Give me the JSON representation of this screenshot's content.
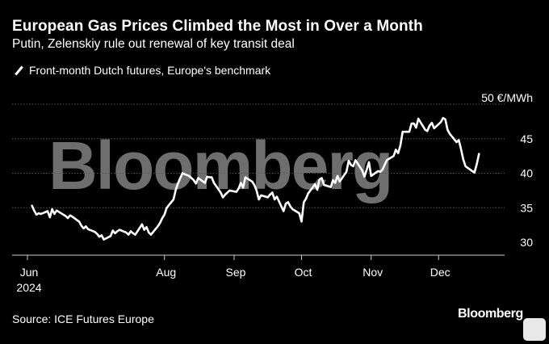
{
  "header": {
    "title": "European Gas Prices Climbed the Most in Over a Month",
    "subtitle": "Putin, Zelenskiy rule out renewal of key transit deal"
  },
  "footer": {
    "source": "Source: ICE Futures Europe",
    "brand": "Bloomberg"
  },
  "watermark": "Bloomberg",
  "colors": {
    "background": "#000000",
    "line": "#ffffff",
    "grid": "#555555",
    "watermark": "#6e6e6e"
  },
  "chart_data": {
    "type": "line",
    "legend": {
      "placement": "top-left",
      "label": "Front-month Dutch futures, Europe's benchmark"
    },
    "yunit_label": "50 €/MWh",
    "y_ticks": [
      30,
      35,
      40,
      45,
      50
    ],
    "y_tick_labels": [
      "30",
      "35",
      "40",
      "45",
      ""
    ],
    "ylim": [
      29,
      52
    ],
    "grid": true,
    "x_ticks": [
      {
        "date": "2024-06-01",
        "label": "Jun",
        "year": "2024"
      },
      {
        "date": "2024-08-01",
        "label": "Aug"
      },
      {
        "date": "2024-09-01",
        "label": "Sep"
      },
      {
        "date": "2024-10-01",
        "label": "Oct"
      },
      {
        "date": "2024-11-01",
        "label": "Nov"
      },
      {
        "date": "2024-12-01",
        "label": "Dec"
      }
    ],
    "xlim": [
      "2024-06-01",
      "2024-12-25"
    ],
    "series": [
      {
        "name": "Front-month Dutch futures, Europe's benchmark",
        "points": [
          [
            "2024-06-03",
            35.3
          ],
          [
            "2024-06-04",
            34.6
          ],
          [
            "2024-06-05",
            34.0
          ],
          [
            "2024-06-06",
            34.2
          ],
          [
            "2024-06-07",
            34.1
          ],
          [
            "2024-06-10",
            34.5
          ],
          [
            "2024-06-11",
            33.6
          ],
          [
            "2024-06-12",
            34.8
          ],
          [
            "2024-06-13",
            34.1
          ],
          [
            "2024-06-14",
            34.6
          ],
          [
            "2024-06-17",
            34.0
          ],
          [
            "2024-06-18",
            33.8
          ],
          [
            "2024-06-19",
            33.5
          ],
          [
            "2024-06-20",
            33.9
          ],
          [
            "2024-06-21",
            33.7
          ],
          [
            "2024-06-24",
            33.0
          ],
          [
            "2024-06-25",
            32.4
          ],
          [
            "2024-06-26",
            32.0
          ],
          [
            "2024-06-27",
            32.3
          ],
          [
            "2024-06-28",
            31.9
          ],
          [
            "2024-07-01",
            31.5
          ],
          [
            "2024-07-02",
            31.2
          ],
          [
            "2024-07-03",
            30.8
          ],
          [
            "2024-07-04",
            31.0
          ],
          [
            "2024-07-05",
            30.4
          ],
          [
            "2024-07-08",
            30.9
          ],
          [
            "2024-07-09",
            31.7
          ],
          [
            "2024-07-10",
            31.3
          ],
          [
            "2024-07-11",
            31.6
          ],
          [
            "2024-07-12",
            31.8
          ],
          [
            "2024-07-15",
            31.4
          ],
          [
            "2024-07-16",
            31.1
          ],
          [
            "2024-07-17",
            31.6
          ],
          [
            "2024-07-18",
            31.3
          ],
          [
            "2024-07-19",
            31.1
          ],
          [
            "2024-07-22",
            32.6
          ],
          [
            "2024-07-23",
            31.8
          ],
          [
            "2024-07-24",
            32.2
          ],
          [
            "2024-07-25",
            31.4
          ],
          [
            "2024-07-26",
            31.1
          ],
          [
            "2024-07-29",
            32.3
          ],
          [
            "2024-07-30",
            32.8
          ],
          [
            "2024-07-31",
            33.5
          ],
          [
            "2024-08-01",
            34.0
          ],
          [
            "2024-08-02",
            35.0
          ],
          [
            "2024-08-05",
            36.2
          ],
          [
            "2024-08-06",
            37.6
          ],
          [
            "2024-08-07",
            38.5
          ],
          [
            "2024-08-08",
            39.3
          ],
          [
            "2024-08-09",
            40.0
          ],
          [
            "2024-08-12",
            39.6
          ],
          [
            "2024-08-13",
            39.3
          ],
          [
            "2024-08-14",
            39.0
          ],
          [
            "2024-08-15",
            38.5
          ],
          [
            "2024-08-16",
            39.3
          ],
          [
            "2024-08-19",
            38.6
          ],
          [
            "2024-08-20",
            39.5
          ],
          [
            "2024-08-21",
            39.4
          ],
          [
            "2024-08-22",
            39.4
          ],
          [
            "2024-08-23",
            38.6
          ],
          [
            "2024-08-26",
            37.2
          ],
          [
            "2024-08-27",
            36.5
          ],
          [
            "2024-08-28",
            36.9
          ],
          [
            "2024-08-29",
            37.2
          ],
          [
            "2024-08-30",
            37.5
          ],
          [
            "2024-09-02",
            37.3
          ],
          [
            "2024-09-03",
            37.8
          ],
          [
            "2024-09-04",
            38.6
          ],
          [
            "2024-09-05",
            37.9
          ],
          [
            "2024-09-06",
            39.4
          ],
          [
            "2024-09-09",
            38.8
          ],
          [
            "2024-09-10",
            38.3
          ],
          [
            "2024-09-11",
            37.5
          ],
          [
            "2024-09-12",
            36.2
          ],
          [
            "2024-09-13",
            36.8
          ],
          [
            "2024-09-16",
            36.5
          ],
          [
            "2024-09-17",
            36.9
          ],
          [
            "2024-09-18",
            37.2
          ],
          [
            "2024-09-19",
            36.2
          ],
          [
            "2024-09-20",
            36.6
          ],
          [
            "2024-09-23",
            34.5
          ],
          [
            "2024-09-24",
            35.6
          ],
          [
            "2024-09-25",
            35.8
          ],
          [
            "2024-09-26",
            35.2
          ],
          [
            "2024-09-27",
            34.8
          ],
          [
            "2024-09-30",
            34.2
          ],
          [
            "2024-10-01",
            33.0
          ],
          [
            "2024-10-02",
            35.8
          ],
          [
            "2024-10-03",
            36.3
          ],
          [
            "2024-10-04",
            37.1
          ],
          [
            "2024-10-07",
            38.4
          ],
          [
            "2024-10-08",
            37.6
          ],
          [
            "2024-10-09",
            39.1
          ],
          [
            "2024-10-10",
            39.3
          ],
          [
            "2024-10-11",
            38.3
          ],
          [
            "2024-10-14",
            38.0
          ],
          [
            "2024-10-15",
            39.0
          ],
          [
            "2024-10-16",
            38.6
          ],
          [
            "2024-10-17",
            39.6
          ],
          [
            "2024-10-18",
            38.8
          ],
          [
            "2024-10-21",
            40.2
          ],
          [
            "2024-10-22",
            41.8
          ],
          [
            "2024-10-23",
            41.2
          ],
          [
            "2024-10-24",
            41.0
          ],
          [
            "2024-10-25",
            41.9
          ],
          [
            "2024-10-28",
            40.4
          ],
          [
            "2024-10-29",
            39.5
          ],
          [
            "2024-10-30",
            40.5
          ],
          [
            "2024-10-31",
            41.6
          ],
          [
            "2024-11-01",
            39.6
          ],
          [
            "2024-11-04",
            40.3
          ],
          [
            "2024-11-05",
            40.2
          ],
          [
            "2024-11-06",
            40.5
          ],
          [
            "2024-11-07",
            41.2
          ],
          [
            "2024-11-08",
            41.9
          ],
          [
            "2024-11-11",
            42.5
          ],
          [
            "2024-11-12",
            43.4
          ],
          [
            "2024-11-13",
            42.9
          ],
          [
            "2024-11-14",
            44.0
          ],
          [
            "2024-11-15",
            46.0
          ],
          [
            "2024-11-18",
            46.0
          ],
          [
            "2024-11-19",
            47.2
          ],
          [
            "2024-11-20",
            47.2
          ],
          [
            "2024-11-21",
            46.6
          ],
          [
            "2024-11-22",
            47.9
          ],
          [
            "2024-11-25",
            46.3
          ],
          [
            "2024-11-26",
            46.1
          ],
          [
            "2024-11-27",
            46.9
          ],
          [
            "2024-11-28",
            47.3
          ],
          [
            "2024-11-29",
            46.5
          ],
          [
            "2024-12-02",
            47.4
          ],
          [
            "2024-12-03",
            48.0
          ],
          [
            "2024-12-04",
            47.8
          ],
          [
            "2024-12-05",
            46.3
          ],
          [
            "2024-12-06",
            45.7
          ],
          [
            "2024-12-09",
            44.5
          ],
          [
            "2024-12-10",
            44.8
          ],
          [
            "2024-12-11",
            43.5
          ],
          [
            "2024-12-12",
            42.0
          ],
          [
            "2024-12-13",
            41.0
          ],
          [
            "2024-12-16",
            40.3
          ],
          [
            "2024-12-17",
            40.1
          ],
          [
            "2024-12-18",
            41.3
          ],
          [
            "2024-12-19",
            42.8
          ]
        ]
      }
    ]
  }
}
